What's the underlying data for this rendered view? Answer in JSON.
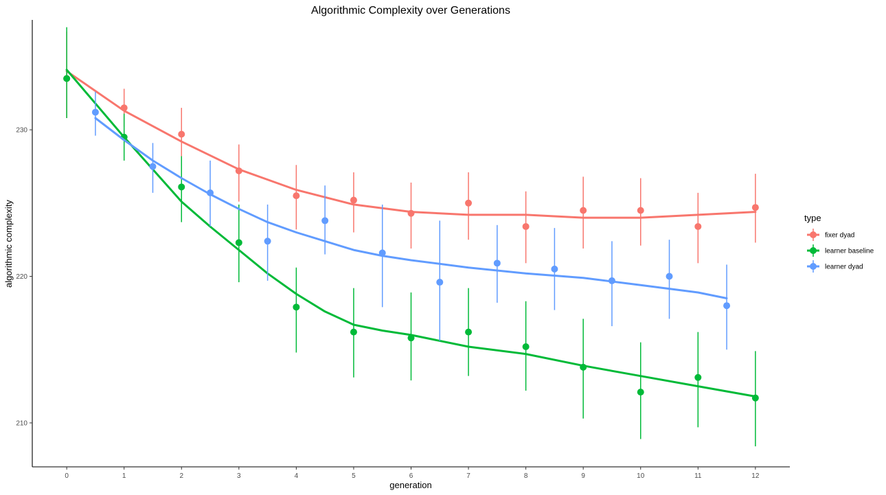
{
  "chart_data": {
    "type": "scatter",
    "title": "Algorithmic Complexity over Generations",
    "xlabel": "generation",
    "ylabel": "algorithmic complexity",
    "xlim": [
      -0.6,
      12.6
    ],
    "ylim": [
      207,
      237.5
    ],
    "xticks": [
      0,
      1,
      2,
      3,
      4,
      5,
      6,
      7,
      8,
      9,
      10,
      11,
      12
    ],
    "yticks": [
      210,
      220,
      230
    ],
    "grid": false,
    "legend": {
      "title": "type",
      "position": "right"
    },
    "series": [
      {
        "name": "fixer dyad",
        "color": "#F8766D",
        "points": [
          {
            "x": 0,
            "y": 233.5,
            "lo": 230.8,
            "hi": 236.7
          },
          {
            "x": 1,
            "y": 231.5,
            "lo": 230.2,
            "hi": 232.8
          },
          {
            "x": 2,
            "y": 229.7,
            "lo": 228.0,
            "hi": 231.5
          },
          {
            "x": 3,
            "y": 227.2,
            "lo": 225.1,
            "hi": 229.0
          },
          {
            "x": 4,
            "y": 225.5,
            "lo": 223.2,
            "hi": 227.6
          },
          {
            "x": 5,
            "y": 225.2,
            "lo": 223.0,
            "hi": 227.1
          },
          {
            "x": 6,
            "y": 224.3,
            "lo": 221.9,
            "hi": 226.4
          },
          {
            "x": 7,
            "y": 225.0,
            "lo": 222.5,
            "hi": 227.1
          },
          {
            "x": 8,
            "y": 223.4,
            "lo": 220.9,
            "hi": 225.8
          },
          {
            "x": 9,
            "y": 224.5,
            "lo": 221.9,
            "hi": 226.8
          },
          {
            "x": 10,
            "y": 224.5,
            "lo": 222.1,
            "hi": 226.7
          },
          {
            "x": 11,
            "y": 223.4,
            "lo": 220.9,
            "hi": 225.7
          },
          {
            "x": 12,
            "y": 224.7,
            "lo": 222.3,
            "hi": 227.0
          }
        ],
        "smooth": [
          [
            0,
            234.0
          ],
          [
            1,
            231.3
          ],
          [
            2,
            229.2
          ],
          [
            3,
            227.3
          ],
          [
            4,
            225.9
          ],
          [
            5,
            224.9
          ],
          [
            6,
            224.4
          ],
          [
            7,
            224.2
          ],
          [
            8,
            224.2
          ],
          [
            9,
            224.0
          ],
          [
            10,
            224.0
          ],
          [
            11,
            224.2
          ],
          [
            12,
            224.4
          ]
        ]
      },
      {
        "name": "learner baseline",
        "color": "#00BA38",
        "points": [
          {
            "x": 0,
            "y": 233.5,
            "lo": 230.8,
            "hi": 237.0
          },
          {
            "x": 1,
            "y": 229.5,
            "lo": 227.9,
            "hi": 231.1
          },
          {
            "x": 2,
            "y": 226.1,
            "lo": 223.7,
            "hi": 228.2
          },
          {
            "x": 3,
            "y": 222.3,
            "lo": 219.6,
            "hi": 224.9
          },
          {
            "x": 4,
            "y": 217.9,
            "lo": 214.8,
            "hi": 220.6
          },
          {
            "x": 5,
            "y": 216.2,
            "lo": 213.1,
            "hi": 219.2
          },
          {
            "x": 6,
            "y": 215.8,
            "lo": 212.9,
            "hi": 218.9
          },
          {
            "x": 7,
            "y": 216.2,
            "lo": 213.2,
            "hi": 219.2
          },
          {
            "x": 8,
            "y": 215.2,
            "lo": 212.2,
            "hi": 218.3
          },
          {
            "x": 9,
            "y": 213.8,
            "lo": 210.3,
            "hi": 217.1
          },
          {
            "x": 10,
            "y": 212.1,
            "lo": 208.9,
            "hi": 215.5
          },
          {
            "x": 11,
            "y": 213.1,
            "lo": 209.7,
            "hi": 216.2
          },
          {
            "x": 12,
            "y": 211.7,
            "lo": 208.4,
            "hi": 214.9
          }
        ],
        "smooth": [
          [
            0,
            234.1
          ],
          [
            0.5,
            231.8
          ],
          [
            1,
            229.5
          ],
          [
            1.5,
            227.3
          ],
          [
            2,
            225.1
          ],
          [
            2.5,
            223.4
          ],
          [
            3,
            221.8
          ],
          [
            3.5,
            220.2
          ],
          [
            4,
            218.8
          ],
          [
            4.5,
            217.6
          ],
          [
            5,
            216.7
          ],
          [
            5.5,
            216.3
          ],
          [
            6,
            216.0
          ],
          [
            7,
            215.2
          ],
          [
            8,
            214.7
          ],
          [
            9,
            213.9
          ],
          [
            10,
            213.2
          ],
          [
            11,
            212.5
          ],
          [
            12,
            211.8
          ]
        ]
      },
      {
        "name": "learner dyad",
        "color": "#619CFF",
        "points": [
          {
            "x": 0.5,
            "y": 231.2,
            "lo": 229.6,
            "hi": 232.6
          },
          {
            "x": 1.5,
            "y": 227.5,
            "lo": 225.7,
            "hi": 229.1
          },
          {
            "x": 2.5,
            "y": 225.7,
            "lo": 223.4,
            "hi": 227.9
          },
          {
            "x": 3.5,
            "y": 222.4,
            "lo": 219.7,
            "hi": 224.9
          },
          {
            "x": 4.5,
            "y": 223.8,
            "lo": 221.5,
            "hi": 226.2
          },
          {
            "x": 5.5,
            "y": 221.6,
            "lo": 217.9,
            "hi": 224.9
          },
          {
            "x": 6.5,
            "y": 219.6,
            "lo": 215.6,
            "hi": 223.8
          },
          {
            "x": 7.5,
            "y": 220.9,
            "lo": 218.2,
            "hi": 223.5
          },
          {
            "x": 8.5,
            "y": 220.5,
            "lo": 217.7,
            "hi": 223.3
          },
          {
            "x": 9.5,
            "y": 219.7,
            "lo": 216.6,
            "hi": 222.4
          },
          {
            "x": 10.5,
            "y": 220.0,
            "lo": 217.1,
            "hi": 222.5
          },
          {
            "x": 11.5,
            "y": 218.0,
            "lo": 215.0,
            "hi": 220.8
          }
        ],
        "smooth": [
          [
            0.5,
            230.8
          ],
          [
            1,
            229.3
          ],
          [
            1.5,
            227.9
          ],
          [
            2,
            226.7
          ],
          [
            2.5,
            225.6
          ],
          [
            3,
            224.6
          ],
          [
            3.5,
            223.7
          ],
          [
            4,
            223.0
          ],
          [
            4.5,
            222.4
          ],
          [
            5,
            221.8
          ],
          [
            5.5,
            221.4
          ],
          [
            6,
            221.1
          ],
          [
            7,
            220.6
          ],
          [
            8,
            220.2
          ],
          [
            9,
            219.9
          ],
          [
            10,
            219.4
          ],
          [
            11,
            218.9
          ],
          [
            11.5,
            218.5
          ]
        ]
      }
    ]
  }
}
